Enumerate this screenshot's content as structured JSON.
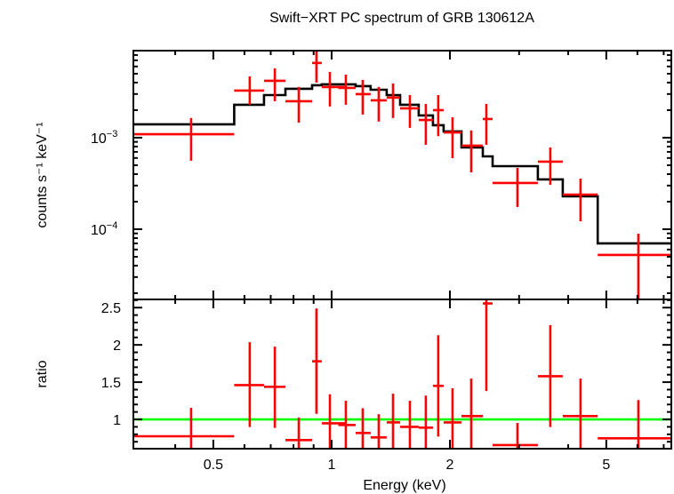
{
  "chart_data": [
    {
      "type": "scatter",
      "title": "Swift−XRT PC spectrum of GRB 130612A",
      "ylabel": "counts s⁻¹ keV⁻¹",
      "xlabel": "",
      "xscale": "log",
      "yscale": "log",
      "xlim": [
        0.313,
        7.32
      ],
      "ylim": [
        1.71e-05,
        0.00893
      ],
      "ytick_labels": [
        {
          "value": 0.001,
          "base": "10",
          "exp": "−3"
        },
        {
          "value": 0.0001,
          "base": "10",
          "exp": "−4"
        }
      ],
      "grid": false,
      "data_color": "#ff0000",
      "model_color": "#000000",
      "data": [
        {
          "x": 0.439,
          "xlo": 0.313,
          "xhi": 0.565,
          "y": 0.00109,
          "ylo": 0.00056,
          "yhi": 0.00164
        },
        {
          "x": 0.619,
          "xlo": 0.565,
          "xhi": 0.673,
          "y": 0.00327,
          "ylo": 0.00229,
          "yhi": 0.00467
        },
        {
          "x": 0.717,
          "xlo": 0.673,
          "xhi": 0.763,
          "y": 0.00418,
          "ylo": 0.0025,
          "yhi": 0.00572
        },
        {
          "x": 0.825,
          "xlo": 0.763,
          "xhi": 0.892,
          "y": 0.0025,
          "ylo": 0.00146,
          "yhi": 0.00358
        },
        {
          "x": 0.915,
          "xlo": 0.892,
          "xhi": 0.944,
          "y": 0.00655,
          "ylo": 0.004,
          "yhi": 0.00935
        },
        {
          "x": 0.99,
          "xlo": 0.944,
          "xhi": 1.081,
          "y": 0.00358,
          "ylo": 0.00219,
          "yhi": 0.00522
        },
        {
          "x": 1.087,
          "xlo": 1.04,
          "xhi": 1.151,
          "y": 0.0035,
          "ylo": 0.00229,
          "yhi": 0.00488
        },
        {
          "x": 1.2,
          "xlo": 1.151,
          "xhi": 1.257,
          "y": 0.00299,
          "ylo": 0.00179,
          "yhi": 0.00427
        },
        {
          "x": 1.318,
          "xlo": 1.257,
          "xhi": 1.381,
          "y": 0.00256,
          "ylo": 0.0015,
          "yhi": 0.00358
        },
        {
          "x": 1.433,
          "xlo": 1.381,
          "xhi": 1.494,
          "y": 0.00274,
          "ylo": 0.00164,
          "yhi": 0.00391
        },
        {
          "x": 1.582,
          "xlo": 1.494,
          "xhi": 1.666,
          "y": 0.00209,
          "ylo": 0.00128,
          "yhi": 0.00292
        },
        {
          "x": 1.737,
          "xlo": 1.666,
          "xhi": 1.811,
          "y": 0.00156,
          "ylo": 0.000836,
          "yhi": 0.00234
        },
        {
          "x": 1.868,
          "xlo": 1.811,
          "xhi": 1.928,
          "y": 0.002,
          "ylo": 0.00104,
          "yhi": 0.00292
        },
        {
          "x": 2.031,
          "xlo": 1.928,
          "xhi": 2.14,
          "y": 0.00114,
          "ylo": 0.000598,
          "yhi": 0.00167
        },
        {
          "x": 2.266,
          "xlo": 2.14,
          "xhi": 2.425,
          "y": 0.000818,
          "ylo": 0.000418,
          "yhi": 0.0012
        },
        {
          "x": 2.476,
          "xlo": 2.425,
          "xhi": 2.568,
          "y": 0.0016,
          "ylo": 0.000836,
          "yhi": 0.00234
        },
        {
          "x": 2.971,
          "xlo": 2.568,
          "xhi": 3.349,
          "y": 0.00032,
          "ylo": 0.000175,
          "yhi": 0.000468
        },
        {
          "x": 3.602,
          "xlo": 3.349,
          "xhi": 3.874,
          "y": 0.000547,
          "ylo": 0.000306,
          "yhi": 0.000782
        },
        {
          "x": 4.3,
          "xlo": 3.874,
          "xhi": 4.756,
          "y": 0.000239,
          "ylo": 0.000122,
          "yhi": 0.000357
        },
        {
          "x": 6.034,
          "xlo": 4.756,
          "xhi": 7.32,
          "y": 5.23e-05,
          "ylo": 1.5e-05,
          "yhi": 8.93e-05
        }
      ],
      "model": [
        {
          "xlo": 0.313,
          "xhi": 0.565,
          "y": 0.0014
        },
        {
          "xlo": 0.565,
          "xhi": 0.673,
          "y": 0.00229
        },
        {
          "xlo": 0.673,
          "xhi": 0.763,
          "y": 0.00292
        },
        {
          "xlo": 0.763,
          "xhi": 0.892,
          "y": 0.00342
        },
        {
          "xlo": 0.892,
          "xhi": 0.944,
          "y": 0.00374
        },
        {
          "xlo": 0.944,
          "xhi": 1.151,
          "y": 0.00383
        },
        {
          "xlo": 1.151,
          "xhi": 1.257,
          "y": 0.00366
        },
        {
          "xlo": 1.257,
          "xhi": 1.381,
          "y": 0.00334
        },
        {
          "xlo": 1.381,
          "xhi": 1.494,
          "y": 0.00292
        },
        {
          "xlo": 1.494,
          "xhi": 1.666,
          "y": 0.00229
        },
        {
          "xlo": 1.666,
          "xhi": 1.811,
          "y": 0.00175
        },
        {
          "xlo": 1.811,
          "xhi": 1.928,
          "y": 0.00137
        },
        {
          "xlo": 1.928,
          "xhi": 2.14,
          "y": 0.00117
        },
        {
          "xlo": 2.14,
          "xhi": 2.425,
          "y": 0.000782
        },
        {
          "xlo": 2.425,
          "xhi": 2.568,
          "y": 0.000625
        },
        {
          "xlo": 2.568,
          "xhi": 3.349,
          "y": 0.000489
        },
        {
          "xlo": 3.349,
          "xhi": 3.874,
          "y": 0.00035
        },
        {
          "xlo": 3.874,
          "xhi": 4.756,
          "y": 0.000229
        },
        {
          "xlo": 4.756,
          "xhi": 7.32,
          "y": 7e-05
        }
      ]
    },
    {
      "type": "scatter",
      "xlabel": "Energy (keV)",
      "ylabel": "ratio",
      "xscale": "log",
      "xlim": [
        0.313,
        7.32
      ],
      "ylim": [
        0.607,
        2.61
      ],
      "xticks": [
        0.5,
        1,
        2,
        5
      ],
      "xtick_labels": [
        "0.5",
        "1",
        "2",
        "5"
      ],
      "yticks": [
        1,
        1.5,
        2,
        2.5
      ],
      "ytick_labels": [
        "1",
        "1.5",
        "2",
        "2.5"
      ],
      "reference_line": {
        "y": 1,
        "color": "#00ff00"
      },
      "data_color": "#ff0000",
      "data": [
        {
          "x": 0.439,
          "xlo": 0.313,
          "xhi": 0.565,
          "y": 0.774,
          "ylo": 0.45,
          "yhi": 1.155
        },
        {
          "x": 0.619,
          "xlo": 0.565,
          "xhi": 0.673,
          "y": 1.46,
          "ylo": 0.897,
          "yhi": 2.036
        },
        {
          "x": 0.717,
          "xlo": 0.673,
          "xhi": 0.763,
          "y": 1.437,
          "ylo": 0.885,
          "yhi": 1.976
        },
        {
          "x": 0.825,
          "xlo": 0.763,
          "xhi": 0.892,
          "y": 0.722,
          "ylo": 0.45,
          "yhi": 1.024
        },
        {
          "x": 0.915,
          "xlo": 0.892,
          "xhi": 0.944,
          "y": 1.78,
          "ylo": 1.075,
          "yhi": 2.49
        },
        {
          "x": 0.99,
          "xlo": 0.944,
          "xhi": 1.081,
          "y": 0.948,
          "ylo": 0.5,
          "yhi": 1.337
        },
        {
          "x": 1.087,
          "xlo": 1.04,
          "xhi": 1.151,
          "y": 0.925,
          "ylo": 0.5,
          "yhi": 1.25
        },
        {
          "x": 1.2,
          "xlo": 1.151,
          "xhi": 1.257,
          "y": 0.818,
          "ylo": 0.5,
          "yhi": 1.15
        },
        {
          "x": 1.318,
          "xlo": 1.257,
          "xhi": 1.381,
          "y": 0.758,
          "ylo": 0.5,
          "yhi": 1.07
        },
        {
          "x": 1.433,
          "xlo": 1.381,
          "xhi": 1.494,
          "y": 0.96,
          "ylo": 0.5,
          "yhi": 1.345
        },
        {
          "x": 1.582,
          "xlo": 1.494,
          "xhi": 1.666,
          "y": 0.9,
          "ylo": 0.5,
          "yhi": 1.25
        },
        {
          "x": 1.737,
          "xlo": 1.666,
          "xhi": 1.811,
          "y": 0.89,
          "ylo": 0.5,
          "yhi": 1.32
        },
        {
          "x": 1.868,
          "xlo": 1.811,
          "xhi": 1.928,
          "y": 1.45,
          "ylo": 0.77,
          "yhi": 2.13
        },
        {
          "x": 2.031,
          "xlo": 1.928,
          "xhi": 2.14,
          "y": 0.96,
          "ylo": 0.5,
          "yhi": 1.417
        },
        {
          "x": 2.266,
          "xlo": 2.14,
          "xhi": 2.425,
          "y": 1.044,
          "ylo": 0.5,
          "yhi": 1.548
        },
        {
          "x": 2.476,
          "xlo": 2.425,
          "xhi": 2.568,
          "y": 2.556,
          "ylo": 1.38,
          "yhi": 3.2
        },
        {
          "x": 2.971,
          "xlo": 2.568,
          "xhi": 3.349,
          "y": 0.655,
          "ylo": 0.45,
          "yhi": 0.952
        },
        {
          "x": 3.602,
          "xlo": 3.349,
          "xhi": 3.874,
          "y": 1.58,
          "ylo": 0.897,
          "yhi": 2.265
        },
        {
          "x": 4.3,
          "xlo": 3.874,
          "xhi": 4.756,
          "y": 1.044,
          "ylo": 0.5,
          "yhi": 1.548
        },
        {
          "x": 6.034,
          "xlo": 4.756,
          "xhi": 7.32,
          "y": 0.746,
          "ylo": 0.45,
          "yhi": 1.26
        }
      ]
    }
  ]
}
